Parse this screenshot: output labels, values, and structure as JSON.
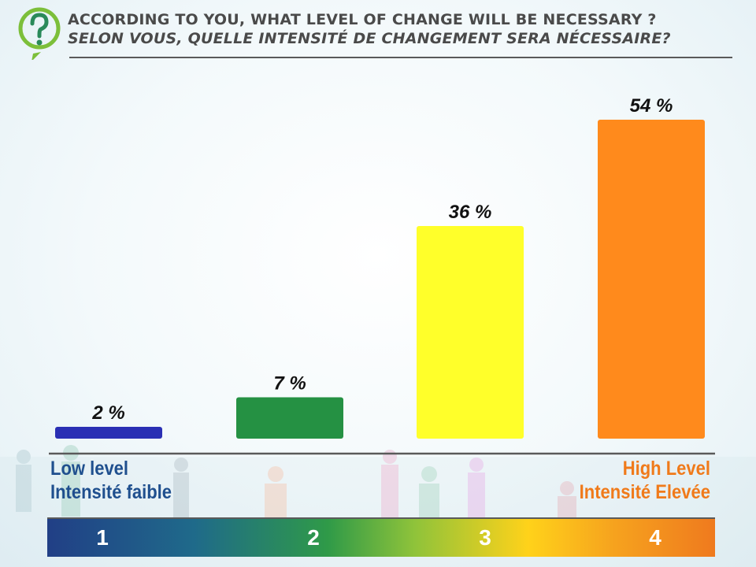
{
  "header": {
    "title_en": "ACCORDING TO YOU, WHAT LEVEL OF CHANGE WILL BE NECESSARY ?",
    "title_fr": "SELON VOUS, QUELLE  INTENSITÉ DE CHANGEMENT SERA NÉCESSAIRE?"
  },
  "chart_data": {
    "type": "bar",
    "categories": [
      "1",
      "2",
      "3",
      "4"
    ],
    "values": [
      2,
      7,
      36,
      54
    ],
    "value_labels": [
      "2 %",
      "7 %",
      "36 %",
      "54 %"
    ],
    "colors": [
      "#2a2fb4",
      "#259143",
      "#ffff2a",
      "#ff8a1c"
    ],
    "ylim": [
      0,
      54
    ],
    "grid": false,
    "legend": "none"
  },
  "axis": {
    "low_en": "Low level",
    "low_fr": "Intensité faible",
    "high_en": "High Level",
    "high_fr": "Intensité Elevée"
  },
  "scale": [
    "1",
    "2",
    "3",
    "4"
  ],
  "colors": {
    "title": "#4a4a4a",
    "low_label": "#1f4f8e",
    "high_label": "#f07a1a"
  }
}
